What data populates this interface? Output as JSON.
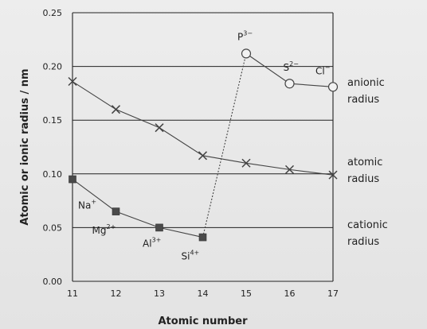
{
  "chart_data": {
    "type": "line",
    "xlabel": "Atomic number",
    "ylabel": "Atomic or ionic radius / nm",
    "xlim": [
      11,
      17
    ],
    "ylim": [
      0,
      0.25
    ],
    "x_ticks": [
      "11",
      "12",
      "13",
      "14",
      "15",
      "16",
      "17"
    ],
    "y_ticks": [
      "0.00",
      "0.05",
      "0.10",
      "0.15",
      "0.20",
      "0.25"
    ],
    "grid": "horizontal",
    "series": [
      {
        "key": "atomic",
        "label_lines": [
          "atomic",
          "radius"
        ],
        "marker": "cross",
        "color": "#444444",
        "points": [
          {
            "x": 11,
            "y": 0.186
          },
          {
            "x": 12,
            "y": 0.16
          },
          {
            "x": 13,
            "y": 0.143
          },
          {
            "x": 14,
            "y": 0.117
          },
          {
            "x": 15,
            "y": 0.11
          },
          {
            "x": 16,
            "y": 0.104
          },
          {
            "x": 17,
            "y": 0.099
          }
        ]
      },
      {
        "key": "cationic",
        "label_lines": [
          "cationic",
          "radius"
        ],
        "marker": "filled-square",
        "color": "#444444",
        "points": [
          {
            "x": 11,
            "y": 0.095,
            "label": "Na",
            "charge": "+"
          },
          {
            "x": 12,
            "y": 0.065,
            "label": "Mg",
            "charge": "2+"
          },
          {
            "x": 13,
            "y": 0.05,
            "label": "Al",
            "charge": "3+"
          },
          {
            "x": 14,
            "y": 0.041,
            "label": "Si",
            "charge": "4+"
          }
        ]
      },
      {
        "key": "anionic",
        "label_lines": [
          "anionic",
          "radius"
        ],
        "marker": "open-circle",
        "color": "#444444",
        "points": [
          {
            "x": 15,
            "y": 0.212,
            "label": "P",
            "charge": "3−"
          },
          {
            "x": 16,
            "y": 0.184,
            "label": "S",
            "charge": "2−"
          },
          {
            "x": 17,
            "y": 0.181,
            "label": "Cl",
            "charge": "−"
          }
        ]
      }
    ],
    "connector": {
      "style": "dotted",
      "from": {
        "x": 14,
        "y": 0.041
      },
      "to": {
        "x": 15,
        "y": 0.212
      }
    }
  }
}
